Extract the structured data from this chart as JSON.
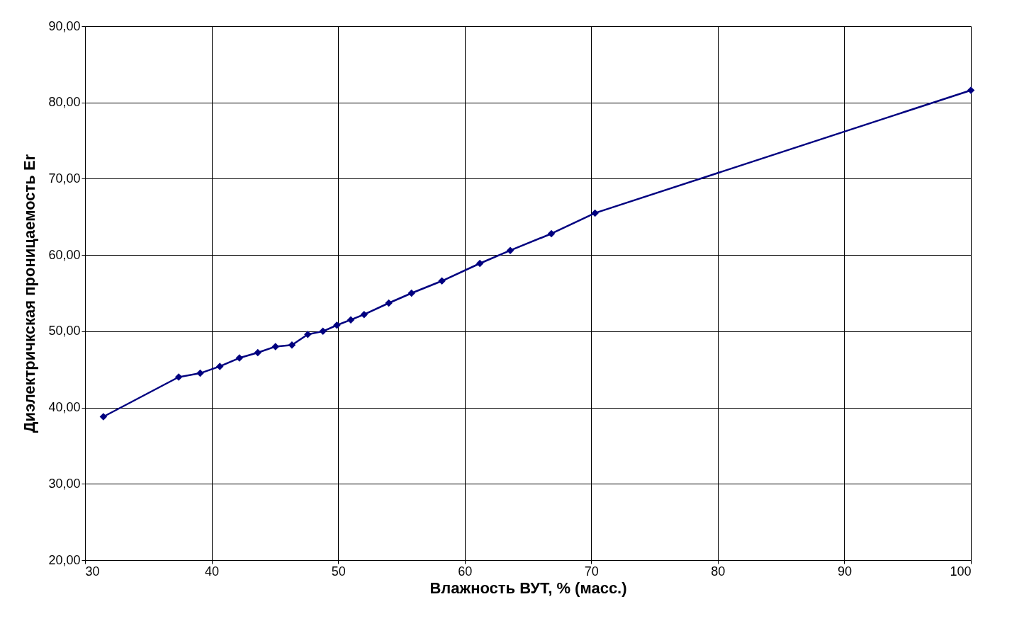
{
  "chart_data": {
    "type": "line",
    "xlabel": "Влажность ВУТ, % (масс.)",
    "ylabel": "Диэлектричкская проницаемость Er",
    "x": [
      31.45,
      37.4,
      39.1,
      40.65,
      42.2,
      43.65,
      45.05,
      46.35,
      47.6,
      48.8,
      49.9,
      51.0,
      52.05,
      54.0,
      55.8,
      58.2,
      61.2,
      63.6,
      66.85,
      70.3,
      100
    ],
    "series": [
      {
        "color": "#000080",
        "values": [
          38.8,
          44.0,
          44.5,
          45.4,
          46.5,
          47.2,
          48.0,
          48.2,
          49.6,
          50.0,
          50.8,
          51.5,
          52.2,
          53.7,
          55.0,
          56.6,
          58.9,
          60.6,
          62.8,
          65.5,
          81.6
        ]
      }
    ],
    "xlim": [
      30,
      100
    ],
    "xticks": [
      30,
      40,
      50,
      60,
      70,
      80,
      90,
      100
    ],
    "ylim": [
      20,
      90
    ],
    "yticks": [
      {
        "value": 20,
        "label": "20,00"
      },
      {
        "value": 30,
        "label": "30,00"
      },
      {
        "value": 40,
        "label": "40,00"
      },
      {
        "value": 50,
        "label": "50,00"
      },
      {
        "value": 60,
        "label": "60,00"
      },
      {
        "value": 70,
        "label": "70,00"
      },
      {
        "value": 80,
        "label": "80,00"
      },
      {
        "value": 90,
        "label": "90,00"
      }
    ],
    "grid": true,
    "marker": "diamond",
    "line_style": "solid"
  }
}
